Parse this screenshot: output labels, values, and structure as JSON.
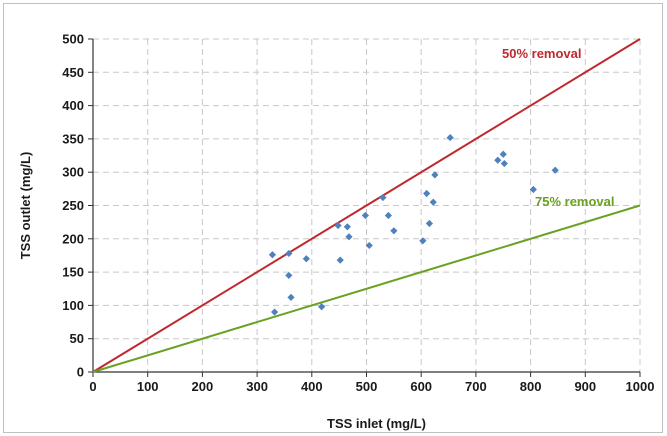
{
  "chart_data": {
    "type": "scatter",
    "title": "",
    "xlabel": "TSS inlet (mg/L)",
    "ylabel": "TSS outlet (mg/L)",
    "xlim": [
      0,
      1000
    ],
    "ylim": [
      0,
      500
    ],
    "xticks": [
      0,
      100,
      200,
      300,
      400,
      500,
      600,
      700,
      800,
      900,
      1000
    ],
    "yticks": [
      0,
      50,
      100,
      150,
      200,
      250,
      300,
      350,
      400,
      450,
      500
    ],
    "xtick_labels": [
      "0",
      "100",
      "200",
      "300",
      "400",
      "500",
      "600",
      "700",
      "800",
      "900",
      "1000"
    ],
    "ytick_labels": [
      "0",
      "50",
      "100",
      "150",
      "200",
      "250",
      "300",
      "350",
      "400",
      "450",
      "500"
    ],
    "grid": true,
    "series": [
      {
        "color": "#4f81bd",
        "marker": "diamond",
        "points": [
          [
            328,
            176
          ],
          [
            332,
            90
          ],
          [
            358,
            178
          ],
          [
            358,
            145
          ],
          [
            362,
            112
          ],
          [
            390,
            170
          ],
          [
            418,
            98
          ],
          [
            448,
            220
          ],
          [
            452,
            168
          ],
          [
            465,
            218
          ],
          [
            468,
            203
          ],
          [
            498,
            235
          ],
          [
            505,
            190
          ],
          [
            530,
            262
          ],
          [
            540,
            235
          ],
          [
            550,
            212
          ],
          [
            603,
            197
          ],
          [
            610,
            268
          ],
          [
            615,
            223
          ],
          [
            622,
            255
          ],
          [
            625,
            296
          ],
          [
            653,
            352
          ],
          [
            740,
            318
          ],
          [
            750,
            327
          ],
          [
            752,
            313
          ],
          [
            805,
            274
          ],
          [
            845,
            303
          ]
        ]
      }
    ],
    "reference_lines": [
      {
        "name": "50% removal",
        "slope": 0.5,
        "color": "#c0282d"
      },
      {
        "name": "75% removal",
        "slope": 0.25,
        "color": "#6aa121"
      }
    ]
  }
}
